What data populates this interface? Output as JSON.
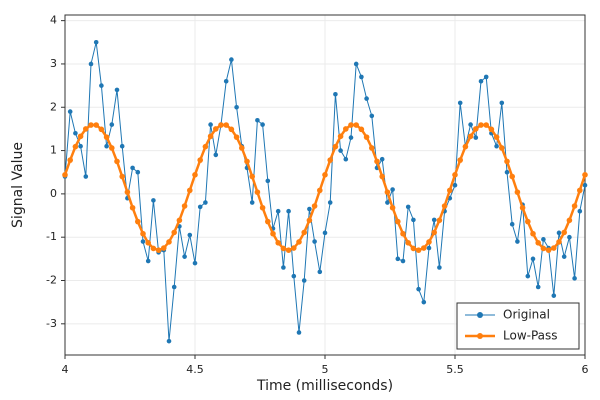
{
  "chart_data": {
    "type": "line",
    "xlabel": "Time (milliseconds)",
    "ylabel": "Signal Value",
    "x": [
      4,
      4.02,
      4.04,
      4.06,
      4.08,
      4.1,
      4.12,
      4.14,
      4.16,
      4.18,
      4.2,
      4.22,
      4.24,
      4.26,
      4.28,
      4.3,
      4.32,
      4.34,
      4.36,
      4.38,
      4.4,
      4.42,
      4.44,
      4.46,
      4.48,
      4.5,
      4.52,
      4.54,
      4.56,
      4.58,
      4.6,
      4.62,
      4.64,
      4.66,
      4.68,
      4.7,
      4.72,
      4.74,
      4.76,
      4.78,
      4.8,
      4.82,
      4.84,
      4.86,
      4.88,
      4.9,
      4.92,
      4.94,
      4.96,
      4.98,
      5,
      5.02,
      5.04,
      5.06,
      5.08,
      5.1,
      5.12,
      5.14,
      5.16,
      5.18,
      5.2,
      5.22,
      5.24,
      5.26,
      5.28,
      5.3,
      5.32,
      5.34,
      5.36,
      5.38,
      5.4,
      5.42,
      5.44,
      5.46,
      5.48,
      5.5,
      5.52,
      5.54,
      5.56,
      5.58,
      5.6,
      5.62,
      5.64,
      5.66,
      5.68,
      5.7,
      5.72,
      5.74,
      5.76,
      5.78,
      5.8,
      5.82,
      5.84,
      5.86,
      5.88,
      5.9,
      5.92,
      5.94,
      5.96,
      5.98,
      6
    ],
    "series": [
      {
        "name": "Original",
        "color": "#1f77b4",
        "values": [
          0.4,
          1.9,
          1.4,
          1.1,
          0.4,
          3.0,
          3.5,
          2.5,
          1.1,
          1.6,
          2.4,
          1.1,
          -0.1,
          0.6,
          0.5,
          -1.1,
          -1.55,
          -0.15,
          -1.35,
          -1.3,
          -3.4,
          -2.15,
          -0.75,
          -1.45,
          -0.95,
          -1.6,
          -0.3,
          -0.2,
          1.6,
          0.9,
          1.6,
          2.6,
          3.1,
          2.0,
          1.1,
          0.6,
          -0.2,
          1.7,
          1.6,
          0.3,
          -0.8,
          -0.4,
          -1.7,
          -0.4,
          -1.9,
          -3.2,
          -2.0,
          -0.35,
          -1.1,
          -1.8,
          -0.9,
          -0.2,
          2.3,
          1.0,
          0.8,
          1.3,
          3.0,
          2.7,
          2.2,
          1.8,
          0.6,
          0.8,
          -0.2,
          0.1,
          -1.5,
          -1.55,
          -0.3,
          -0.6,
          -2.2,
          -2.5,
          -1.25,
          -0.6,
          -1.7,
          -0.4,
          -0.1,
          0.2,
          2.1,
          1.1,
          1.6,
          1.3,
          2.6,
          2.7,
          1.4,
          1.1,
          2.1,
          0.5,
          -0.7,
          -1.1,
          -0.25,
          -1.9,
          -1.5,
          -2.15,
          -1.05,
          -1.25,
          -2.35,
          -0.9,
          -1.45,
          -1.0,
          -1.95,
          -0.4,
          0.2
        ]
      },
      {
        "name": "Low-Pass",
        "color": "#ff7f0e",
        "values": [
          0.44,
          0.78,
          1.09,
          1.33,
          1.5,
          1.59,
          1.59,
          1.49,
          1.31,
          1.06,
          0.75,
          0.4,
          0.04,
          -0.32,
          -0.64,
          -0.92,
          -1.13,
          -1.26,
          -1.3,
          -1.25,
          -1.11,
          -0.89,
          -0.61,
          -0.28,
          0.08,
          0.44,
          0.78,
          1.09,
          1.33,
          1.5,
          1.59,
          1.59,
          1.49,
          1.31,
          1.06,
          0.75,
          0.4,
          0.04,
          -0.32,
          -0.64,
          -0.92,
          -1.13,
          -1.26,
          -1.3,
          -1.25,
          -1.11,
          -0.89,
          -0.61,
          -0.28,
          0.08,
          0.44,
          0.78,
          1.09,
          1.33,
          1.5,
          1.59,
          1.59,
          1.49,
          1.31,
          1.06,
          0.75,
          0.4,
          0.04,
          -0.32,
          -0.64,
          -0.92,
          -1.13,
          -1.26,
          -1.3,
          -1.25,
          -1.11,
          -0.89,
          -0.61,
          -0.28,
          0.08,
          0.44,
          0.78,
          1.09,
          1.33,
          1.5,
          1.59,
          1.59,
          1.49,
          1.31,
          1.06,
          0.75,
          0.4,
          0.04,
          -0.32,
          -0.64,
          -0.92,
          -1.13,
          -1.26,
          -1.3,
          -1.25,
          -1.11,
          -0.89,
          -0.61,
          -0.28,
          0.08,
          0.44
        ]
      }
    ],
    "xlim": [
      4,
      6
    ],
    "xticks": [
      4,
      4.5,
      5,
      5.5,
      6
    ],
    "ylim": [
      -3.72,
      4.13
    ],
    "yticks": [
      -3,
      -2,
      -1,
      0,
      1,
      2,
      3,
      4
    ],
    "grid": true,
    "legend": "lower right"
  }
}
